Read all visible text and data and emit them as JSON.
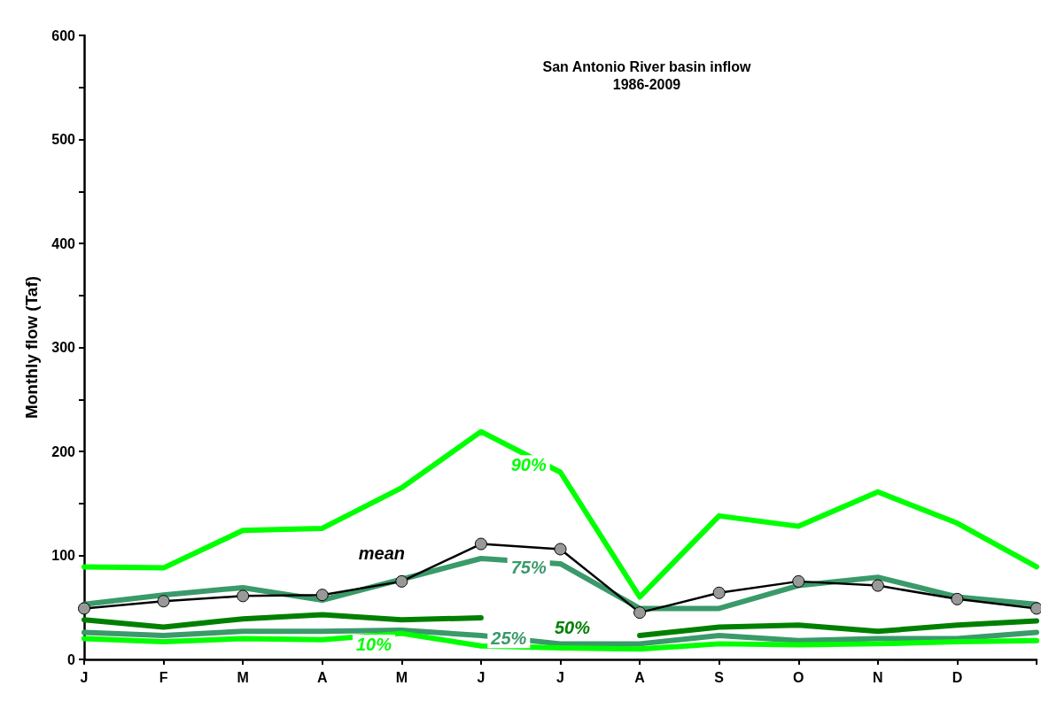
{
  "chart_data": {
    "type": "line",
    "title": "San Antonio River basin inflow",
    "subtitle": "1986-2009",
    "ylabel": "Monthly flow (Taf)",
    "categories": [
      "J",
      "F",
      "M",
      "A",
      "M",
      "J",
      "J",
      "A",
      "S",
      "O",
      "N",
      "D",
      null
    ],
    "ylim": [
      0,
      600
    ],
    "yticks": [
      0,
      {
        "value": 50,
        "label": null
      },
      100,
      {
        "value": 150,
        "label": null
      },
      200,
      {
        "value": 250,
        "label": null
      },
      300,
      {
        "value": 350,
        "label": null
      },
      400,
      {
        "value": 450,
        "label": null
      },
      500,
      {
        "value": 550,
        "label": null
      },
      600
    ],
    "grid": false,
    "legend": false,
    "marker": "none",
    "series": [
      {
        "name": "90%",
        "color": "#00ff00",
        "values": [
          89,
          88,
          124,
          126,
          165,
          219,
          180,
          60,
          138,
          128,
          161,
          131,
          89
        ]
      },
      {
        "name": "mean",
        "color": "#000000",
        "marker": "circle",
        "values": [
          49,
          56,
          61,
          62,
          75,
          111,
          106,
          45,
          64,
          75,
          71,
          58,
          49
        ]
      },
      {
        "name": "75%",
        "color": "#3a9a6a",
        "values": [
          53,
          62,
          69,
          57,
          77,
          97,
          92,
          49,
          49,
          71,
          79,
          60,
          53
        ]
      },
      {
        "name": "50%",
        "color": "#008000",
        "values": [
          38,
          31,
          39,
          43,
          38,
          40,
          null,
          23,
          31,
          33,
          27,
          33,
          37
        ]
      },
      {
        "name": "25%",
        "color": "#3a9a6a",
        "values": [
          26,
          23,
          27,
          27,
          28,
          23,
          15,
          15,
          23,
          18,
          20,
          20,
          26
        ]
      },
      {
        "name": "10%",
        "color": "#00ff00",
        "values": [
          20,
          17,
          20,
          19,
          25,
          13,
          11,
          10,
          15,
          14,
          15,
          17,
          18
        ]
      }
    ]
  }
}
